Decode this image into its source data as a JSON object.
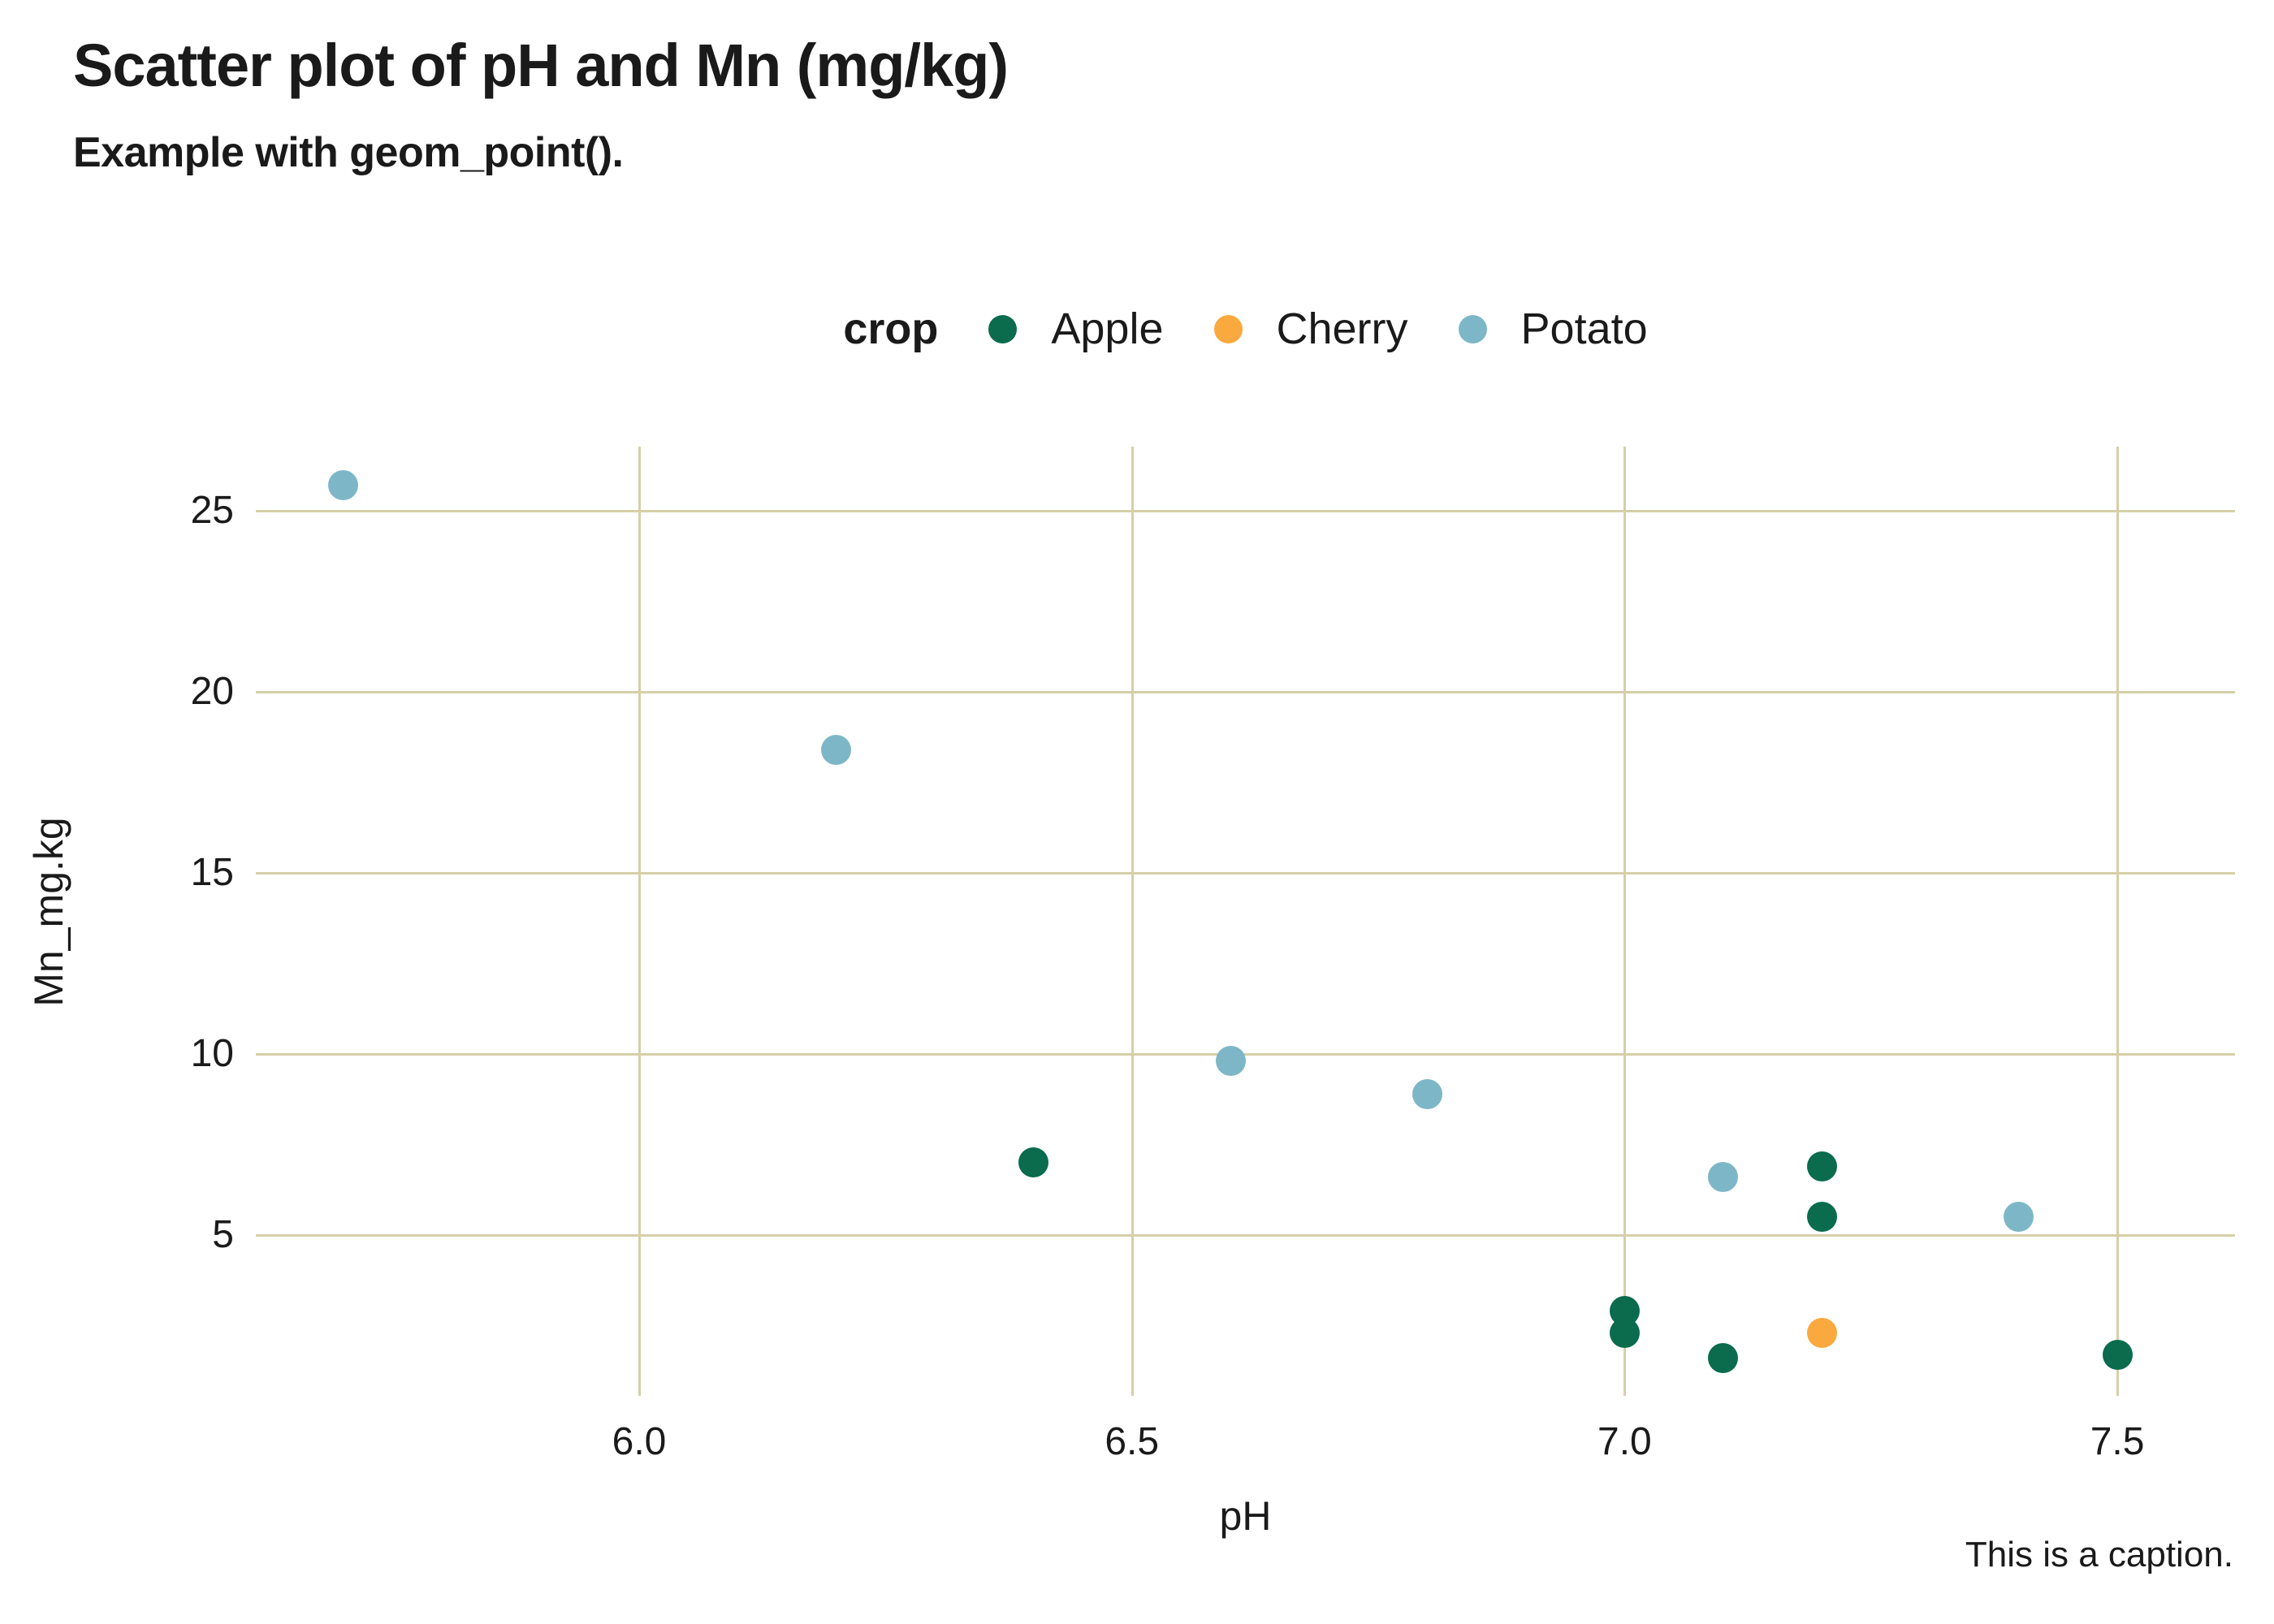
{
  "title": "Scatter plot of pH and Mn (mg/kg)",
  "subtitle": "Example with geom_point().",
  "caption": "This is a caption.",
  "legend": {
    "title": "crop",
    "items": [
      {
        "label": "Apple",
        "color": "#0A6B4D"
      },
      {
        "label": "Cherry",
        "color": "#FAA93E"
      },
      {
        "label": "Potato",
        "color": "#7DB7C7"
      }
    ]
  },
  "axes": {
    "x": {
      "title": "pH",
      "tick_labels": [
        "6.0",
        "6.5",
        "7.0",
        "7.5"
      ],
      "tick_values": [
        6.0,
        6.5,
        7.0,
        7.5
      ]
    },
    "y": {
      "title": "Mn_mg.kg",
      "tick_labels": [
        "25",
        "20",
        "15",
        "10",
        "5"
      ],
      "tick_values": [
        25,
        20,
        15,
        10,
        5
      ]
    }
  },
  "colors": {
    "background": "#ffffff",
    "gridline": "#d6cfa8",
    "text": "#1a1a1a",
    "apple": "#0A6B4D",
    "cherry": "#FAA93E",
    "potato": "#7DB7C7"
  },
  "chart_data": {
    "type": "scatter",
    "title": "Scatter plot of pH and Mn (mg/kg)",
    "subtitle": "Example with geom_point().",
    "caption": "This is a caption.",
    "xlabel": "pH",
    "ylabel": "Mn_mg.kg",
    "xlim": [
      5.61,
      7.62
    ],
    "ylim": [
      1.05,
      26.8
    ],
    "grid": true,
    "legend_position": "top",
    "series": [
      {
        "name": "Apple",
        "color": "#0A6B4D",
        "points": [
          [
            6.4,
            7.0
          ],
          [
            7.0,
            2.9
          ],
          [
            7.0,
            2.3
          ],
          [
            7.1,
            1.6
          ],
          [
            7.2,
            6.9
          ],
          [
            7.2,
            5.5
          ],
          [
            7.5,
            1.7
          ]
        ]
      },
      {
        "name": "Cherry",
        "color": "#FAA93E",
        "points": [
          [
            7.2,
            2.3
          ]
        ]
      },
      {
        "name": "Potato",
        "color": "#7DB7C7",
        "points": [
          [
            5.7,
            25.7
          ],
          [
            6.2,
            18.4
          ],
          [
            6.6,
            9.8
          ],
          [
            6.8,
            8.9
          ],
          [
            7.1,
            6.6
          ],
          [
            7.4,
            5.5
          ]
        ]
      }
    ]
  }
}
